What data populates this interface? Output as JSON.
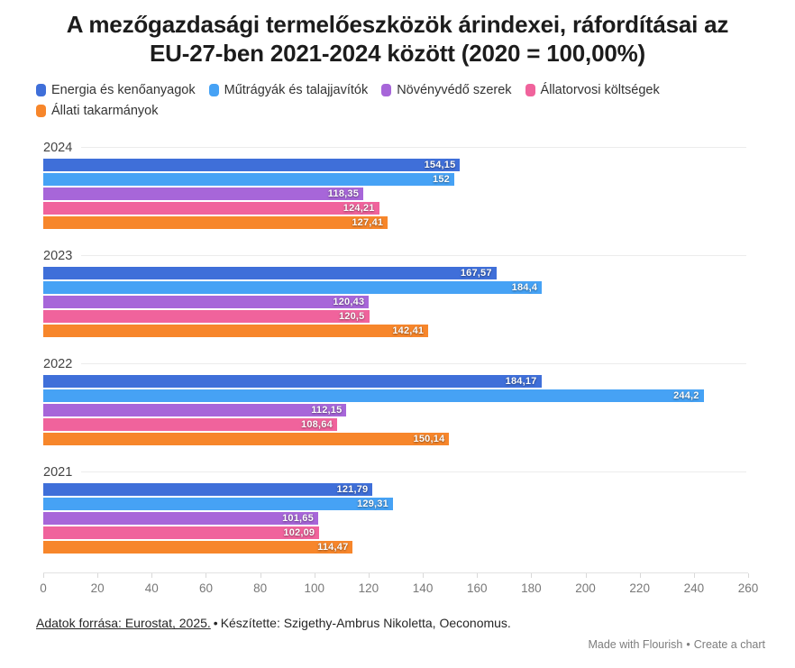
{
  "title": "A mezőgazdasági termelőeszközök árindexei, ráfordításai az EU-27-ben 2021-2024 között (2020 = 100,00%)",
  "chart_data": {
    "type": "bar",
    "orientation": "horizontal",
    "legend_position": "top",
    "grid": "group-separator-lines-only",
    "groups": [
      "2024",
      "2023",
      "2022",
      "2021"
    ],
    "series": [
      {
        "name": "Energia és kenőanyagok",
        "slug": "energia-es-kenoanyagok",
        "color": "#3f6fd9",
        "values": [
          154.15,
          167.57,
          184.17,
          121.79
        ]
      },
      {
        "name": "Műtrágyák és talajjavítók",
        "slug": "mutragyak-es-talajjavitok",
        "color": "#46a2f5",
        "values": [
          152,
          184.4,
          244.2,
          129.31
        ]
      },
      {
        "name": "Növényvédő szerek",
        "slug": "novenyvedo-szerek",
        "color": "#a766d9",
        "values": [
          118.35,
          120.43,
          112.15,
          101.65
        ]
      },
      {
        "name": "Állatorvosi költségek",
        "slug": "allatorvosi-koltsegek",
        "color": "#f0639c",
        "values": [
          124.21,
          120.5,
          108.64,
          102.09
        ]
      },
      {
        "name": "Állati takarmányok",
        "slug": "allati-takarmanyok",
        "color": "#f7862b",
        "values": [
          127.41,
          142.41,
          150.14,
          114.47
        ]
      }
    ],
    "xlim": [
      0,
      260
    ],
    "x_ticks": [
      0,
      20,
      40,
      60,
      80,
      100,
      120,
      140,
      160,
      180,
      200,
      220,
      240,
      260
    ],
    "value_label_decimal_separator": ",",
    "baseline_note": "2020 = 100,00%"
  },
  "footer": {
    "source_link": "Adatok forrása: Eurostat, 2025.",
    "separator": "•",
    "credit": "Készítette: Szigethy-Ambrus Nikoletta, Oeconomus."
  },
  "attribution": {
    "made_with": "Made with Flourish",
    "separator": "•",
    "create_chart": "Create a chart"
  }
}
